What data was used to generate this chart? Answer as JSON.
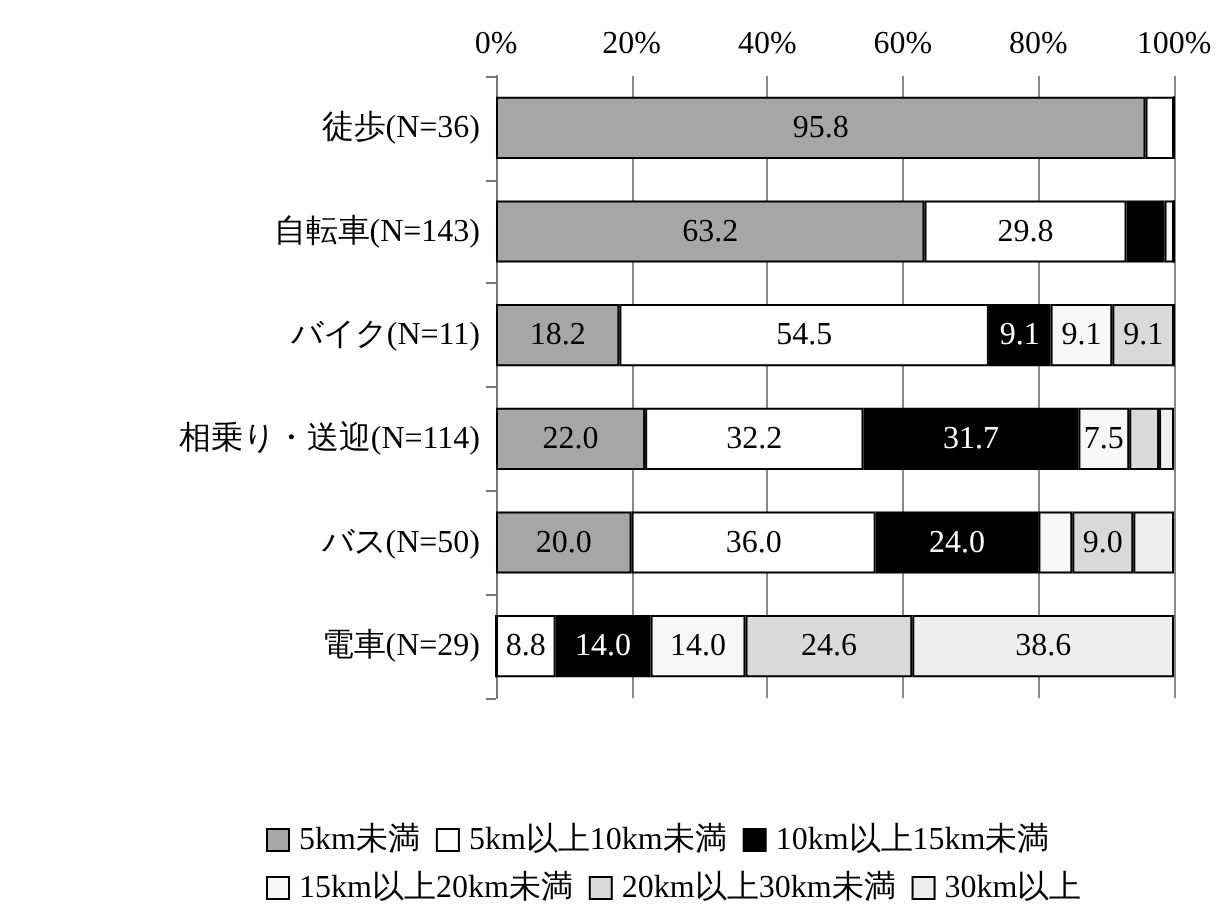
{
  "chart_data": {
    "type": "bar",
    "orientation": "horizontal",
    "stacked": true,
    "categories": [
      "徒歩(N=36)",
      "自転車(N=143)",
      "バイク(N=11)",
      "相乗り・送迎(N=114)",
      "バス(N=50)",
      "電車(N=29)"
    ],
    "series": [
      {
        "name": "5km未満",
        "color": "#a6a6a6",
        "values": [
          95.8,
          63.2,
          18.2,
          22.0,
          20.0,
          0
        ],
        "value_labels": [
          "95.8",
          "63.2",
          "18.2",
          "22.0",
          "20.0",
          null
        ]
      },
      {
        "name": "5km以上10km未満",
        "color": "#ffffff",
        "values": [
          4.2,
          29.8,
          54.5,
          32.2,
          36.0,
          8.8
        ],
        "value_labels": [
          null,
          "29.8",
          "54.5",
          "32.2",
          "36.0",
          "8.8"
        ]
      },
      {
        "name": "10km以上15km未満",
        "color": "#000000",
        "values": [
          0,
          5.6,
          9.1,
          31.7,
          24.0,
          14.0
        ],
        "value_labels": [
          null,
          null,
          "9.1",
          "31.7",
          "24.0",
          "14.0"
        ]
      },
      {
        "name": "15km以上20km未満",
        "color": "#f7f7f7",
        "values": [
          0,
          1.4,
          9.1,
          7.5,
          5.0,
          14.0
        ],
        "value_labels": [
          null,
          null,
          "9.1",
          "7.5",
          null,
          "14.0"
        ]
      },
      {
        "name": "20km以上30km未満",
        "color": "#d9d9d9",
        "values": [
          0,
          0,
          9.1,
          4.4,
          9.0,
          24.6
        ],
        "value_labels": [
          null,
          null,
          "9.1",
          null,
          "9.0",
          "24.6"
        ]
      },
      {
        "name": "30km以上",
        "color": "#eeeeee",
        "values": [
          0,
          0,
          0,
          2.2,
          6.0,
          38.6
        ],
        "value_labels": [
          null,
          null,
          null,
          null,
          null,
          "38.6"
        ]
      }
    ],
    "xlim": [
      0,
      100
    ],
    "xticks": [
      {
        "value": 0,
        "label": "0%"
      },
      {
        "value": 20,
        "label": "20%"
      },
      {
        "value": 40,
        "label": "40%"
      },
      {
        "value": 60,
        "label": "60%"
      },
      {
        "value": 80,
        "label": "80%"
      },
      {
        "value": 100,
        "label": "100%"
      }
    ],
    "grid": "x",
    "legend": "bottom"
  }
}
